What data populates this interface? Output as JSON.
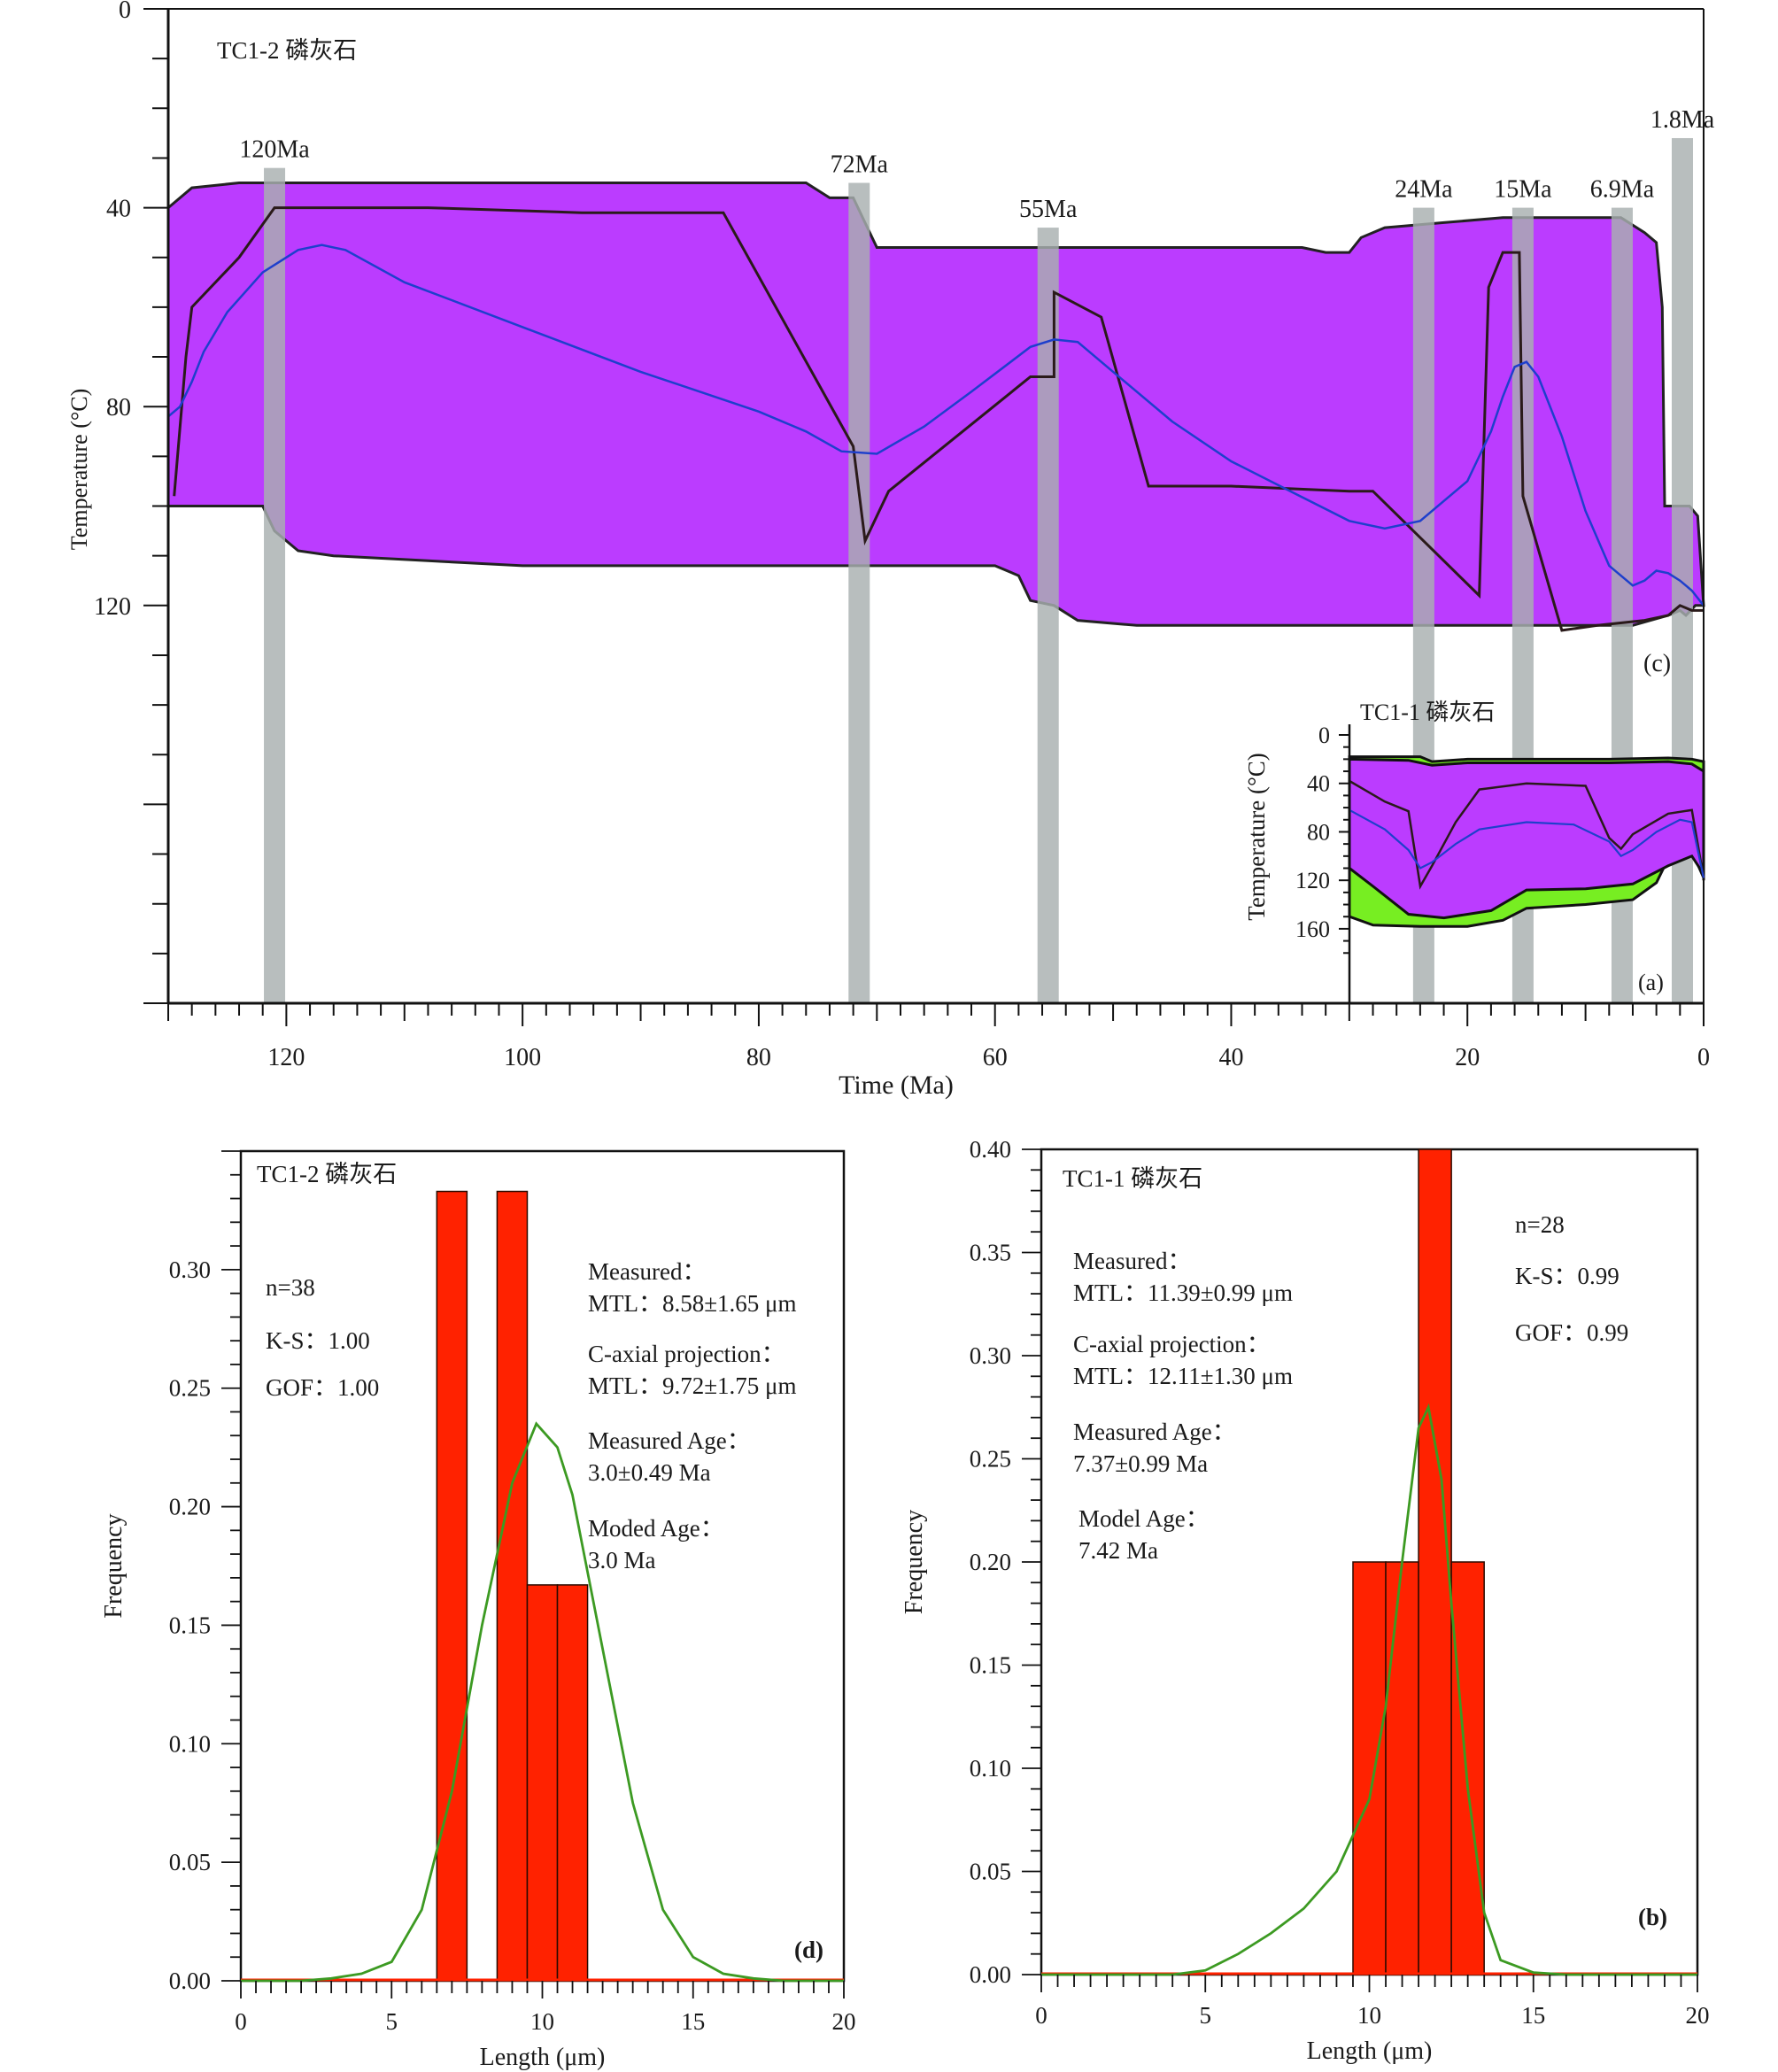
{
  "colors": {
    "envelope_fill": "#bb3cff",
    "envelope_stroke": "#222222",
    "good_fill": "#77ee22",
    "best_fit": "#1e3fcc",
    "path_line": "#2a1a1a",
    "event_bar": "#a8b0b0",
    "histogram_bar": "#ff2200",
    "model_curve": "#3c9a22",
    "axis": "#111111"
  },
  "chart_data": [
    {
      "id": "c",
      "type": "line",
      "panel_tag": "(c)",
      "title": "TC1-2    磷灰石",
      "xlabel": "Time (Ma)",
      "ylabel": "Temperature (°C)",
      "xlim": [
        130,
        0
      ],
      "ylim": [
        0,
        200
      ],
      "x_ticks": [
        "120",
        "100",
        "80",
        "60",
        "40",
        "20",
        "0"
      ],
      "x_tick_values": [
        120,
        100,
        80,
        60,
        40,
        20,
        0
      ],
      "y_ticks": [
        "0",
        "40",
        "80",
        "120"
      ],
      "y_tick_values": [
        0,
        40,
        80,
        120
      ],
      "events": [
        {
          "label": "120Ma",
          "age": 121,
          "top": 32
        },
        {
          "label": "72Ma",
          "age": 71.5,
          "top": 35
        },
        {
          "label": "55Ma",
          "age": 55.5,
          "top": 44
        },
        {
          "label": "24Ma",
          "age": 23.7,
          "top": 40
        },
        {
          "label": "15Ma",
          "age": 15.3,
          "top": 40
        },
        {
          "label": "6.9Ma",
          "age": 6.9,
          "top": 40
        },
        {
          "label": "1.8Ma",
          "age": 1.8,
          "top": 26
        }
      ],
      "envelope_upper": [
        [
          130,
          40
        ],
        [
          128,
          36
        ],
        [
          124,
          35
        ],
        [
          106,
          35
        ],
        [
          86,
          35
        ],
        [
          76,
          35
        ],
        [
          74,
          38
        ],
        [
          72,
          38
        ],
        [
          70,
          48
        ],
        [
          66,
          48
        ],
        [
          52,
          48
        ],
        [
          34,
          48
        ],
        [
          32,
          49
        ],
        [
          30,
          49
        ],
        [
          29,
          46
        ],
        [
          27,
          44
        ],
        [
          22,
          43
        ],
        [
          17,
          42
        ],
        [
          13,
          42
        ],
        [
          7,
          42
        ],
        [
          5,
          45
        ],
        [
          4,
          47
        ],
        [
          3.5,
          60
        ],
        [
          3.3,
          100
        ],
        [
          1.2,
          100
        ],
        [
          0.5,
          102
        ],
        [
          0,
          120
        ]
      ],
      "envelope_lower": [
        [
          130,
          100
        ],
        [
          122,
          100
        ],
        [
          121,
          105
        ],
        [
          119,
          109
        ],
        [
          116,
          110
        ],
        [
          108,
          111
        ],
        [
          100,
          112
        ],
        [
          90,
          112
        ],
        [
          80,
          112
        ],
        [
          70,
          112
        ],
        [
          60,
          112
        ],
        [
          58,
          114
        ],
        [
          57,
          119
        ],
        [
          55,
          120
        ],
        [
          53,
          123
        ],
        [
          48,
          124
        ],
        [
          30,
          124
        ],
        [
          10,
          124
        ],
        [
          6,
          124
        ],
        [
          3,
          122
        ],
        [
          2,
          121
        ],
        [
          1.5,
          122
        ],
        [
          0.7,
          120
        ],
        [
          0,
          120
        ]
      ],
      "best_fit": [
        [
          130,
          82
        ],
        [
          129,
          80
        ],
        [
          128,
          75
        ],
        [
          127,
          69
        ],
        [
          125,
          61
        ],
        [
          122,
          53
        ],
        [
          119,
          48.5
        ],
        [
          117,
          47.5
        ],
        [
          115,
          48.5
        ],
        [
          110,
          55
        ],
        [
          100,
          64
        ],
        [
          90,
          73
        ],
        [
          80,
          81
        ],
        [
          76,
          85
        ],
        [
          73,
          89
        ],
        [
          70,
          89.5
        ],
        [
          66,
          84
        ],
        [
          62,
          77
        ],
        [
          57,
          68
        ],
        [
          55,
          66.5
        ],
        [
          53,
          67
        ],
        [
          50,
          73
        ],
        [
          45,
          83
        ],
        [
          40,
          91
        ],
        [
          35,
          97
        ],
        [
          30,
          103
        ],
        [
          27,
          104.5
        ],
        [
          24,
          103
        ],
        [
          20,
          95
        ],
        [
          18,
          85
        ],
        [
          17,
          78
        ],
        [
          16,
          72
        ],
        [
          15,
          71
        ],
        [
          14,
          74
        ],
        [
          12,
          86
        ],
        [
          10,
          101
        ],
        [
          8,
          112
        ],
        [
          6,
          116
        ],
        [
          5,
          115
        ],
        [
          4,
          113
        ],
        [
          3,
          113.5
        ],
        [
          2,
          115
        ],
        [
          1,
          117
        ],
        [
          0,
          120
        ]
      ],
      "paths": [
        [
          [
            129.5,
            98
          ],
          [
            128.5,
            70
          ],
          [
            128,
            60
          ],
          [
            124,
            50
          ],
          [
            121,
            40
          ],
          [
            108,
            40
          ],
          [
            95,
            41
          ],
          [
            83,
            41
          ],
          [
            72,
            88
          ],
          [
            71,
            107
          ],
          [
            69,
            97
          ],
          [
            57,
            74
          ],
          [
            55,
            74
          ],
          [
            55,
            57
          ],
          [
            51,
            62
          ],
          [
            47,
            96
          ],
          [
            40,
            96
          ],
          [
            30,
            97
          ],
          [
            28,
            97
          ],
          [
            19,
            118
          ],
          [
            18.2,
            56
          ],
          [
            17,
            49
          ],
          [
            15.6,
            49
          ],
          [
            15.3,
            98
          ],
          [
            12,
            125
          ],
          [
            9,
            124
          ],
          [
            5,
            123
          ],
          [
            3,
            122
          ],
          [
            2,
            120
          ],
          [
            1,
            121
          ],
          [
            0,
            121
          ]
        ]
      ]
    },
    {
      "id": "a",
      "type": "line",
      "panel_tag": "(a)",
      "title": "TC1-1    磷灰石",
      "ylabel": "Temperature (°C)",
      "xlim": [
        30,
        0
      ],
      "ylim": [
        0,
        220
      ],
      "y_ticks": [
        "0",
        "40",
        "80",
        "120",
        "160"
      ],
      "y_tick_values": [
        0,
        40,
        80,
        120,
        160
      ],
      "good_upper": [
        [
          30,
          18
        ],
        [
          24,
          18
        ],
        [
          23,
          22
        ],
        [
          20,
          20
        ],
        [
          8,
          20
        ],
        [
          3,
          19
        ],
        [
          1,
          20
        ],
        [
          0,
          22
        ],
        [
          0,
          120
        ]
      ],
      "good_lower": [
        [
          30,
          150
        ],
        [
          28,
          157
        ],
        [
          24,
          158
        ],
        [
          20,
          158
        ],
        [
          17,
          153
        ],
        [
          15,
          143
        ],
        [
          10,
          140
        ],
        [
          6,
          136
        ],
        [
          4,
          122
        ],
        [
          3,
          102
        ],
        [
          1,
          96
        ],
        [
          0,
          118
        ]
      ],
      "acc_upper": [
        [
          30,
          20
        ],
        [
          25,
          21
        ],
        [
          23,
          25
        ],
        [
          20,
          23
        ],
        [
          8,
          23
        ],
        [
          3,
          22
        ],
        [
          1,
          24
        ],
        [
          0,
          30
        ]
      ],
      "acc_lower": [
        [
          30,
          110
        ],
        [
          28,
          125
        ],
        [
          25,
          148
        ],
        [
          22,
          151
        ],
        [
          18,
          145
        ],
        [
          15,
          128
        ],
        [
          10,
          127
        ],
        [
          6,
          123
        ],
        [
          3,
          108
        ],
        [
          1,
          100
        ],
        [
          0,
          115
        ]
      ],
      "best_fit": [
        [
          30,
          62
        ],
        [
          27,
          78
        ],
        [
          25,
          95
        ],
        [
          24,
          110
        ],
        [
          23,
          105
        ],
        [
          21,
          90
        ],
        [
          19,
          78
        ],
        [
          15,
          72
        ],
        [
          11,
          74
        ],
        [
          8,
          88
        ],
        [
          7,
          100
        ],
        [
          6,
          95
        ],
        [
          4,
          80
        ],
        [
          2,
          70
        ],
        [
          1,
          72
        ],
        [
          0,
          118
        ]
      ],
      "paths": [
        [
          [
            30,
            38
          ],
          [
            27,
            55
          ],
          [
            25,
            63
          ],
          [
            24,
            125
          ],
          [
            23,
            108
          ],
          [
            21,
            72
          ],
          [
            19,
            45
          ],
          [
            15,
            40
          ],
          [
            10,
            42
          ],
          [
            8,
            85
          ],
          [
            7,
            94
          ],
          [
            6,
            82
          ],
          [
            3,
            65
          ],
          [
            1,
            62
          ],
          [
            0,
            118
          ]
        ]
      ]
    },
    {
      "id": "d",
      "type": "bar",
      "panel_tag": "(d)",
      "title": "TC1-2    磷灰石",
      "xlabel": "Length (μm)",
      "ylabel": "Frequency",
      "xlim": [
        0,
        20
      ],
      "ylim": [
        0,
        0.35
      ],
      "x_ticks": [
        "0",
        "5",
        "10",
        "15",
        "20"
      ],
      "x_tick_values": [
        0,
        5,
        10,
        15,
        20
      ],
      "y_ticks": [
        "0.00",
        "0.05",
        "0.10",
        "0.15",
        "0.20",
        "0.25",
        "0.30"
      ],
      "y_tick_values": [
        0,
        0.05,
        0.1,
        0.15,
        0.2,
        0.25,
        0.3
      ],
      "bins": [
        {
          "start": 6.5,
          "end": 7.5,
          "value": 0.333
        },
        {
          "start": 8.5,
          "end": 9.5,
          "value": 0.333
        },
        {
          "start": 9.5,
          "end": 10.5,
          "value": 0.167
        },
        {
          "start": 10.5,
          "end": 11.5,
          "value": 0.167
        }
      ],
      "model_curve": [
        [
          0,
          0
        ],
        [
          2,
          0
        ],
        [
          3,
          0.001
        ],
        [
          4,
          0.003
        ],
        [
          5,
          0.008
        ],
        [
          6,
          0.03
        ],
        [
          7,
          0.08
        ],
        [
          8,
          0.15
        ],
        [
          9,
          0.21
        ],
        [
          9.8,
          0.235
        ],
        [
          10.5,
          0.225
        ],
        [
          11,
          0.205
        ],
        [
          12,
          0.14
        ],
        [
          13,
          0.075
        ],
        [
          14,
          0.03
        ],
        [
          15,
          0.01
        ],
        [
          16,
          0.003
        ],
        [
          17,
          0.001
        ],
        [
          18,
          0
        ],
        [
          20,
          0
        ]
      ],
      "stats_left": [
        "n=38",
        "K-S：1.00",
        "GOF：1.00"
      ],
      "stats_right": [
        "Measured：",
        "MTL：8.58±1.65 μm",
        "C-axial projection：",
        "MTL：9.72±1.75 μm",
        "Measured Age：",
        "3.0±0.49 Ma",
        "Moded Age：",
        "3.0 Ma"
      ]
    },
    {
      "id": "b",
      "type": "bar",
      "panel_tag": "(b)",
      "title": "TC1-1    磷灰石",
      "xlabel": "Length (μm)",
      "ylabel": "Frequency",
      "xlim": [
        0,
        20
      ],
      "ylim": [
        0,
        0.4
      ],
      "x_ticks": [
        "0",
        "5",
        "10",
        "15",
        "20"
      ],
      "x_tick_values": [
        0,
        5,
        10,
        15,
        20
      ],
      "y_ticks": [
        "0.00",
        "0.05",
        "0.10",
        "0.15",
        "0.20",
        "0.25",
        "0.30",
        "0.35",
        "0.40"
      ],
      "y_tick_values": [
        0,
        0.05,
        0.1,
        0.15,
        0.2,
        0.25,
        0.3,
        0.35,
        0.4
      ],
      "bins": [
        {
          "start": 9.5,
          "end": 10.5,
          "value": 0.2
        },
        {
          "start": 10.5,
          "end": 11.5,
          "value": 0.2
        },
        {
          "start": 11.5,
          "end": 12.5,
          "value": 0.4
        },
        {
          "start": 12.5,
          "end": 13.5,
          "value": 0.2
        }
      ],
      "model_curve": [
        [
          0,
          0
        ],
        [
          4,
          0
        ],
        [
          5,
          0.002
        ],
        [
          6,
          0.01
        ],
        [
          7,
          0.02
        ],
        [
          8,
          0.032
        ],
        [
          9,
          0.05
        ],
        [
          10,
          0.085
        ],
        [
          10.5,
          0.13
        ],
        [
          11,
          0.2
        ],
        [
          11.5,
          0.265
        ],
        [
          11.8,
          0.275
        ],
        [
          12.2,
          0.24
        ],
        [
          12.5,
          0.18
        ],
        [
          13,
          0.09
        ],
        [
          13.5,
          0.03
        ],
        [
          14,
          0.007
        ],
        [
          15,
          0.001
        ],
        [
          16,
          0
        ],
        [
          20,
          0
        ]
      ],
      "stats_left": [
        "Measured：",
        "MTL：11.39±0.99 μm",
        "C-axial projection：",
        "MTL：12.11±1.30 μm",
        "Measured Age：",
        "7.37±0.99 Ma",
        "Model Age：",
        "7.42 Ma"
      ],
      "stats_right": [
        "n=28",
        "K-S：0.99",
        "GOF：0.99"
      ]
    }
  ]
}
